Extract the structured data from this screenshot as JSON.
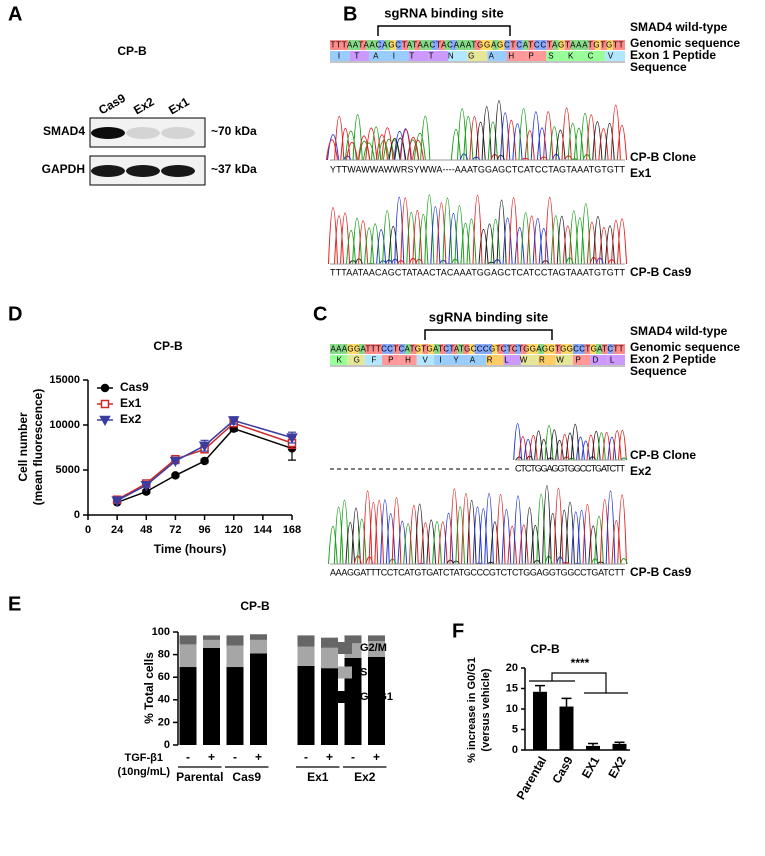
{
  "panels": {
    "a": {
      "label": "A",
      "title": "CP-B",
      "lanes": [
        "Cas9",
        "Ex2",
        "Ex1"
      ],
      "blots": [
        {
          "protein": "SMAD4",
          "size": "~70 kDa"
        },
        {
          "protein": "GAPDH",
          "size": "~37 kDa"
        }
      ]
    },
    "b": {
      "label": "B",
      "site": "sgRNA binding site",
      "reference": "SMAD4 wild-type",
      "genomic_label": "Genomic sequence",
      "peptide_label": [
        "Exon 1 Peptide",
        "Sequence"
      ],
      "genomic": "TTTAATAACAGCTATAACTACAAATGGAGCTCATCCTAGTAAATGTGTT",
      "peptide": "ITAITTNGAHPSKCV",
      "traces": [
        {
          "sequence": "YTTWAWWAWWRSYWWA----AAATGGAGCTCATCCTAGTAAATGTGTT",
          "label": [
            "CP-B Clone",
            "Ex1"
          ]
        },
        {
          "sequence": "TTTAATAACAGCTATAACTACAAATGGAGCTCATCCTAGTAAATGTGTT",
          "label": [
            "CP-B Cas9"
          ]
        }
      ]
    },
    "c": {
      "label": "C",
      "site": "sgRNA binding site",
      "reference": "SMAD4 wild-type",
      "genomic_label": "Genomic sequence",
      "peptide_label": [
        "Exon 2 Peptide",
        "Sequence"
      ],
      "genomic": "AAAGGATTTCCTCATGTGATCTATGCCCGTCTCTGGAGGTGGCCTGATCTT",
      "peptide": "KGFPHVIYARLWRWPDL",
      "traces": [
        {
          "sequence": "CTCTGGAGGTGGCCTGATCTT",
          "label": [
            "CP-B Clone",
            "Ex2"
          ]
        },
        {
          "sequence": "AAAGGATTTCCTCATGTGATCTATGCCCGTCTCTGGAGGTGGCCTGATCTT",
          "label": [
            "CP-B Cas9"
          ]
        }
      ]
    }
  },
  "chart_data": [
    {
      "type": "line",
      "panel_label": "D",
      "title": "CP-B",
      "xlabel": "Time (hours)",
      "ylabel": [
        "Cell number",
        "(mean fluorescence)"
      ],
      "x": [
        24,
        48,
        72,
        96,
        120,
        168
      ],
      "xlim": [
        0,
        168
      ],
      "xticks": [
        0,
        24,
        48,
        72,
        96,
        120,
        144,
        168
      ],
      "ylim": [
        0,
        15000
      ],
      "yticks": [
        0,
        5000,
        10000,
        15000
      ],
      "series": [
        {
          "name": "Cas9",
          "color": "#000000",
          "marker": "circle",
          "values": [
            1400,
            2600,
            4400,
            6000,
            9600,
            7400
          ],
          "errors": [
            100,
            150,
            150,
            200,
            300,
            1300
          ]
        },
        {
          "name": "Ex1",
          "color": "#cc2a2a",
          "marker": "open-square",
          "values": [
            1700,
            3500,
            6200,
            7300,
            10200,
            8000
          ],
          "errors": [
            150,
            200,
            300,
            300,
            400,
            600
          ]
        },
        {
          "name": "Ex2",
          "color": "#3c3ca0",
          "marker": "triangle-down",
          "values": [
            1600,
            3300,
            6000,
            7700,
            10500,
            8600
          ],
          "errors": [
            150,
            200,
            300,
            600,
            400,
            600
          ]
        }
      ]
    },
    {
      "type": "stacked-bar",
      "panel_label": "E",
      "title": "CP-B",
      "ylabel": "% Total cells",
      "categories": [
        "-",
        "+",
        "-",
        "+",
        "-",
        "+",
        "-",
        "+"
      ],
      "groups": [
        "Parental",
        "Cas9",
        "Ex1",
        "Ex2"
      ],
      "treatment_label": "TGF-β1",
      "treatment_dose": "(10ng/mL)",
      "ylim": [
        0,
        100
      ],
      "yticks": [
        0,
        20,
        40,
        60,
        80,
        100
      ],
      "series": [
        {
          "name": "Go/G1",
          "color": "#000000",
          "values": [
            69,
            86,
            69,
            81,
            70,
            68,
            77,
            78
          ]
        },
        {
          "name": "S",
          "color": "#a6a6a6",
          "values": [
            20,
            7,
            19,
            12,
            17,
            18,
            13,
            14
          ]
        },
        {
          "name": "G2/M",
          "color": "#666666",
          "values": [
            8,
            4,
            9,
            5,
            10,
            9,
            7,
            5
          ]
        }
      ]
    },
    {
      "type": "bar",
      "panel_label": "F",
      "title": "CP-B",
      "ylabel": [
        "% increase in G0/G1",
        "(versus vehicle)"
      ],
      "categories": [
        "Parental",
        "Cas9",
        "EX1",
        "EX2"
      ],
      "values": [
        14.2,
        10.6,
        1.0,
        1.5
      ],
      "errors": [
        1.5,
        2.0,
        0.6,
        0.4
      ],
      "color": "#000000",
      "ylim": [
        0,
        20
      ],
      "yticks": [
        0,
        5,
        10,
        15,
        20
      ],
      "annotation": "****"
    }
  ]
}
